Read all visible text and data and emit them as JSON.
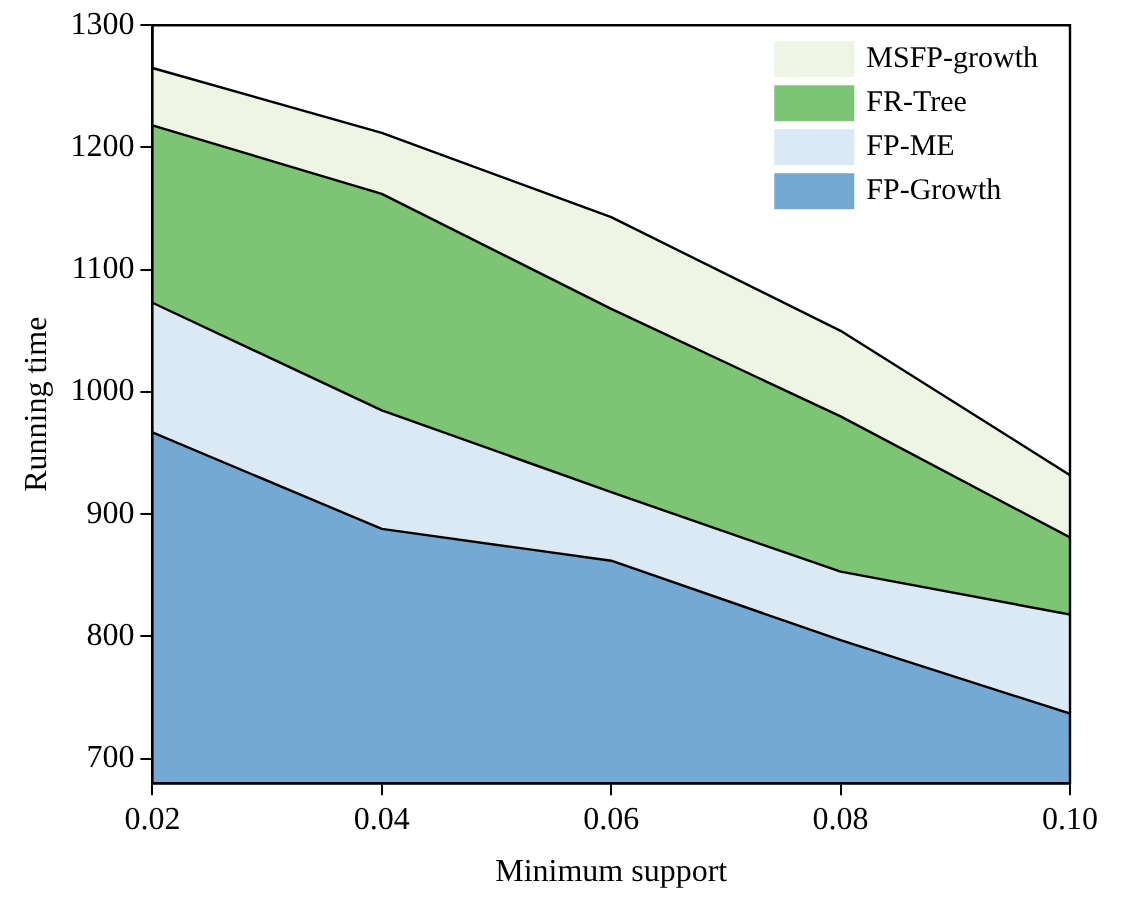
{
  "chart_data": {
    "type": "area",
    "xlabel": "Minimum support",
    "ylabel": "Running time",
    "x": [
      0.02,
      0.04,
      0.06,
      0.08,
      0.1
    ],
    "xlim": [
      0.02,
      0.1
    ],
    "xticks": [
      {
        "value": 0.02,
        "label": "0.02"
      },
      {
        "value": 0.04,
        "label": "0.04"
      },
      {
        "value": 0.06,
        "label": "0.06"
      },
      {
        "value": 0.08,
        "label": "0.08"
      },
      {
        "value": 0.1,
        "label": "0.10"
      }
    ],
    "ylim": [
      680,
      1300
    ],
    "yticks": [
      700,
      800,
      900,
      1000,
      1100,
      1200,
      1300
    ],
    "grid": false,
    "legend": "top right",
    "series": [
      {
        "name": "MSFP-growth",
        "color": "#eef5e4",
        "values": [
          1265,
          1212,
          1143,
          1050,
          932
        ]
      },
      {
        "name": "FR-Tree",
        "color": "#7dc474",
        "values": [
          1218,
          1162,
          1068,
          980,
          881
        ]
      },
      {
        "name": "FP-ME",
        "color": "#dbe9f4",
        "values": [
          1073,
          985,
          918,
          853,
          818
        ]
      },
      {
        "name": "FP-Growth",
        "color": "#74a9d4",
        "values": [
          967,
          888,
          862,
          797,
          737
        ]
      }
    ]
  }
}
